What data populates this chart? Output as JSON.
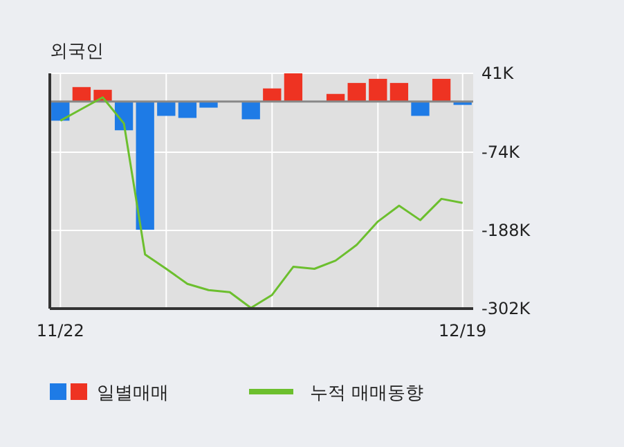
{
  "chart_data": {
    "type": "bar",
    "title": "외국인",
    "categories": [
      "11/22",
      null,
      null,
      null,
      null,
      null,
      null,
      null,
      null,
      null,
      null,
      null,
      null,
      null,
      null,
      null,
      null,
      null,
      null,
      "12/19"
    ],
    "series": [
      {
        "name": "일별매매",
        "values": [
          -28000,
          21000,
          17000,
          -42000,
          -187000,
          -21000,
          -24000,
          -9000,
          0,
          -26000,
          19000,
          41000,
          0,
          11000,
          27000,
          33000,
          27000,
          -21000,
          33000,
          -5000
        ],
        "colors": [
          "#1e7be6",
          "#ee3322",
          "#ee3322",
          "#1e7be6",
          "#1e7be6",
          "#1e7be6",
          "#1e7be6",
          "#1e7be6",
          "#1e7be6",
          "#1e7be6",
          "#ee3322",
          "#ee3322",
          "#ee3322",
          "#ee3322",
          "#ee3322",
          "#ee3322",
          "#ee3322",
          "#1e7be6",
          "#ee3322",
          "#1e7be6"
        ]
      },
      {
        "name": "누적 매매동향",
        "type": "line",
        "color": "#6cbf2e",
        "values": [
          -28000,
          -11000,
          6000,
          -32000,
          -223000,
          -244000,
          -266000,
          -275000,
          -278000,
          -301000,
          -282000,
          -241000,
          -244000,
          -232000,
          -209000,
          -175000,
          -152000,
          -173000,
          -142000,
          -148000
        ]
      }
    ],
    "ylim": [
      -302000,
      41000
    ],
    "yticks": [
      {
        "value": 41000,
        "label": "41K"
      },
      {
        "value": -74000,
        "label": "-74K"
      },
      {
        "value": -188000,
        "label": "-188K"
      },
      {
        "value": -302000,
        "label": "-302K"
      }
    ],
    "grid": true,
    "legend": "bottom"
  }
}
